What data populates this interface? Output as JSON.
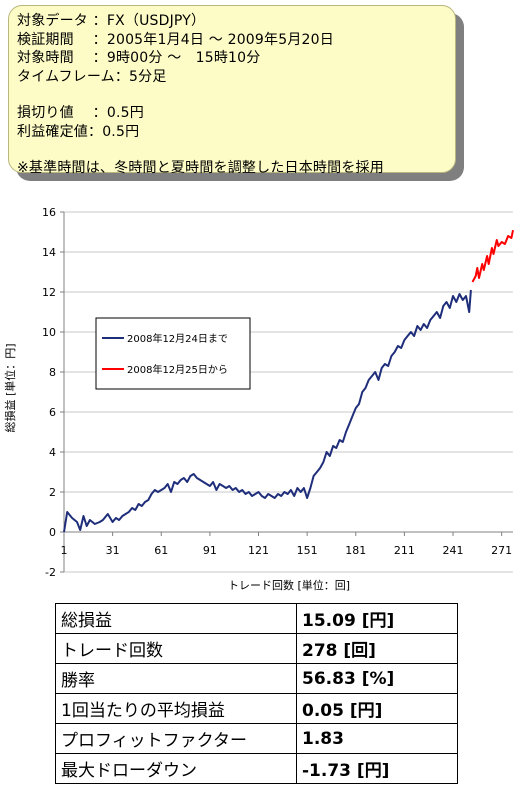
{
  "info": {
    "lines": [
      "対象データ ：FX（USDJPY）",
      "検証期間　 ：2005年1月4日 ～ 2009年5月20日",
      "対象時間　 ：9時00分 ～　15時10分",
      "タイムフレーム：5分足"
    ],
    "stops": [
      "損切り値　 ：0.5円",
      "利益確定値：0.5円"
    ],
    "note": "※基準時間は、冬時間と夏時間を調整した日本時間を採用"
  },
  "chart_data": {
    "type": "line",
    "xlabel": "トレード回数 [単位：回]",
    "ylabel": "総損益 [単位：円]",
    "ylim": [
      -2,
      16
    ],
    "yticks": [
      "-2",
      "0",
      "2",
      "4",
      "6",
      "8",
      "10",
      "12",
      "14",
      "16"
    ],
    "xlim": [
      1,
      278
    ],
    "xticks": [
      "1",
      "31",
      "61",
      "91",
      "121",
      "151",
      "181",
      "211",
      "241",
      "271"
    ],
    "grid": "horizontal",
    "legend_position": "left-middle",
    "series": [
      {
        "name": "2008年12月24日まで",
        "color": "#1f2e7a",
        "points": [
          [
            1,
            0
          ],
          [
            3,
            1
          ],
          [
            6,
            0.7
          ],
          [
            9,
            0.5
          ],
          [
            11,
            0.1
          ],
          [
            13,
            0.8
          ],
          [
            15,
            0.3
          ],
          [
            17,
            0.6
          ],
          [
            20,
            0.4
          ],
          [
            23,
            0.5
          ],
          [
            25,
            0.6
          ],
          [
            28,
            0.9
          ],
          [
            31,
            0.5
          ],
          [
            33,
            0.7
          ],
          [
            35,
            0.6
          ],
          [
            37,
            0.8
          ],
          [
            39,
            0.9
          ],
          [
            41,
            1.0
          ],
          [
            43,
            1.2
          ],
          [
            45,
            1.1
          ],
          [
            47,
            1.4
          ],
          [
            49,
            1.3
          ],
          [
            51,
            1.5
          ],
          [
            53,
            1.6
          ],
          [
            55,
            1.9
          ],
          [
            57,
            2.1
          ],
          [
            59,
            2.0
          ],
          [
            61,
            2.1
          ],
          [
            63,
            2.2
          ],
          [
            65,
            2.4
          ],
          [
            67,
            2.0
          ],
          [
            69,
            2.5
          ],
          [
            71,
            2.4
          ],
          [
            73,
            2.6
          ],
          [
            75,
            2.7
          ],
          [
            77,
            2.5
          ],
          [
            79,
            2.8
          ],
          [
            81,
            2.9
          ],
          [
            83,
            2.7
          ],
          [
            85,
            2.6
          ],
          [
            87,
            2.5
          ],
          [
            89,
            2.4
          ],
          [
            91,
            2.3
          ],
          [
            93,
            2.5
          ],
          [
            95,
            2.1
          ],
          [
            97,
            2.4
          ],
          [
            99,
            2.3
          ],
          [
            101,
            2.2
          ],
          [
            103,
            2.3
          ],
          [
            105,
            2.1
          ],
          [
            107,
            2.2
          ],
          [
            109,
            2.0
          ],
          [
            111,
            2.1
          ],
          [
            113,
            1.9
          ],
          [
            115,
            2.0
          ],
          [
            117,
            1.8
          ],
          [
            119,
            1.9
          ],
          [
            121,
            2.0
          ],
          [
            123,
            1.8
          ],
          [
            125,
            1.7
          ],
          [
            127,
            1.9
          ],
          [
            129,
            1.8
          ],
          [
            131,
            1.7
          ],
          [
            133,
            1.9
          ],
          [
            135,
            1.8
          ],
          [
            137,
            2.0
          ],
          [
            139,
            1.9
          ],
          [
            141,
            2.1
          ],
          [
            143,
            1.8
          ],
          [
            145,
            2.2
          ],
          [
            147,
            2.0
          ],
          [
            149,
            2.2
          ],
          [
            151,
            1.7
          ],
          [
            153,
            2.2
          ],
          [
            155,
            2.8
          ],
          [
            157,
            3.0
          ],
          [
            159,
            3.2
          ],
          [
            161,
            3.5
          ],
          [
            163,
            4.0
          ],
          [
            165,
            3.8
          ],
          [
            167,
            4.3
          ],
          [
            169,
            4.2
          ],
          [
            171,
            4.6
          ],
          [
            173,
            4.5
          ],
          [
            175,
            5.0
          ],
          [
            177,
            5.4
          ],
          [
            179,
            5.8
          ],
          [
            181,
            6.2
          ],
          [
            183,
            6.4
          ],
          [
            185,
            7.0
          ],
          [
            187,
            7.2
          ],
          [
            189,
            7.6
          ],
          [
            191,
            7.8
          ],
          [
            193,
            8.0
          ],
          [
            195,
            7.6
          ],
          [
            197,
            8.2
          ],
          [
            199,
            8.4
          ],
          [
            201,
            8.3
          ],
          [
            203,
            8.8
          ],
          [
            205,
            9.0
          ],
          [
            207,
            9.3
          ],
          [
            209,
            9.2
          ],
          [
            211,
            9.6
          ],
          [
            213,
            9.8
          ],
          [
            215,
            10.0
          ],
          [
            217,
            9.8
          ],
          [
            219,
            10.3
          ],
          [
            221,
            10.1
          ],
          [
            223,
            10.4
          ],
          [
            225,
            10.2
          ],
          [
            227,
            10.6
          ],
          [
            229,
            10.8
          ],
          [
            231,
            11.0
          ],
          [
            233,
            10.7
          ],
          [
            235,
            11.3
          ],
          [
            237,
            11.5
          ],
          [
            239,
            11.2
          ],
          [
            241,
            11.8
          ],
          [
            243,
            11.5
          ],
          [
            245,
            11.9
          ],
          [
            247,
            11.6
          ],
          [
            249,
            11.8
          ],
          [
            251,
            11.0
          ],
          [
            252,
            12.1
          ]
        ]
      },
      {
        "name": "2008年12月25日から",
        "color": "#ff0000",
        "points": [
          [
            253,
            12.5
          ],
          [
            255,
            12.8
          ],
          [
            256,
            13.2
          ],
          [
            257,
            12.7
          ],
          [
            259,
            13.4
          ],
          [
            260,
            13.1
          ],
          [
            262,
            13.8
          ],
          [
            263,
            13.4
          ],
          [
            265,
            14.2
          ],
          [
            266,
            13.9
          ],
          [
            268,
            14.6
          ],
          [
            269,
            14.3
          ],
          [
            271,
            14.5
          ],
          [
            273,
            14.4
          ],
          [
            275,
            14.8
          ],
          [
            277,
            14.7
          ],
          [
            278,
            15.09
          ]
        ]
      }
    ]
  },
  "stats": [
    {
      "label": "総損益",
      "value": "15.09 [円]"
    },
    {
      "label": "トレード回数",
      "value": "278 [回]"
    },
    {
      "label": "勝率",
      "value": "56.83 [%]"
    },
    {
      "label": "1回当たりの平均損益",
      "value": "0.05 [円]"
    },
    {
      "label": "プロフィットファクター",
      "value": "1.83"
    },
    {
      "label": "最大ドローダウン",
      "value": "-1.73 [円]"
    }
  ]
}
